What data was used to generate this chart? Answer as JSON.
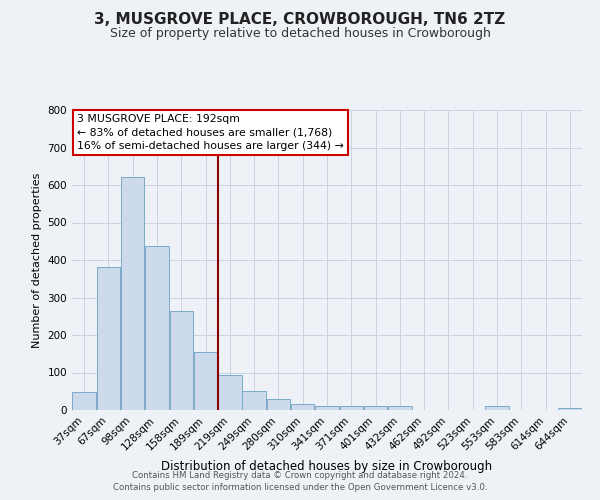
{
  "title": "3, MUSGROVE PLACE, CROWBOROUGH, TN6 2TZ",
  "subtitle": "Size of property relative to detached houses in Crowborough",
  "xlabel": "Distribution of detached houses by size in Crowborough",
  "ylabel": "Number of detached properties",
  "categories": [
    "37sqm",
    "67sqm",
    "98sqm",
    "128sqm",
    "158sqm",
    "189sqm",
    "219sqm",
    "249sqm",
    "280sqm",
    "310sqm",
    "341sqm",
    "371sqm",
    "401sqm",
    "432sqm",
    "462sqm",
    "492sqm",
    "523sqm",
    "553sqm",
    "583sqm",
    "614sqm",
    "644sqm"
  ],
  "bar_heights": [
    47,
    382,
    622,
    438,
    265,
    155,
    93,
    50,
    30,
    15,
    10,
    10,
    10,
    10,
    0,
    0,
    0,
    10,
    0,
    0,
    5
  ],
  "bar_color": "#ccdaeb",
  "bar_edge_color": "#7aaac8",
  "vline_x_idx": 5,
  "vline_color": "#8b0000",
  "ylim": [
    0,
    800
  ],
  "yticks": [
    0,
    100,
    200,
    300,
    400,
    500,
    600,
    700,
    800
  ],
  "annotation_title": "3 MUSGROVE PLACE: 192sqm",
  "annotation_line1": "← 83% of detached houses are smaller (1,768)",
  "annotation_line2": "16% of semi-detached houses are larger (344) →",
  "annotation_box_color": "#ffffff",
  "annotation_border_color": "#cc0000",
  "grid_color": "#c8d4e0",
  "bg_color": "#eef2f7",
  "title_fontsize": 11,
  "subtitle_fontsize": 9,
  "ylabel_fontsize": 8,
  "xlabel_fontsize": 8.5,
  "tick_fontsize": 7.5,
  "footer1": "Contains HM Land Registry data © Crown copyright and database right 2024.",
  "footer2": "Contains public sector information licensed under the Open Government Licence v3.0."
}
